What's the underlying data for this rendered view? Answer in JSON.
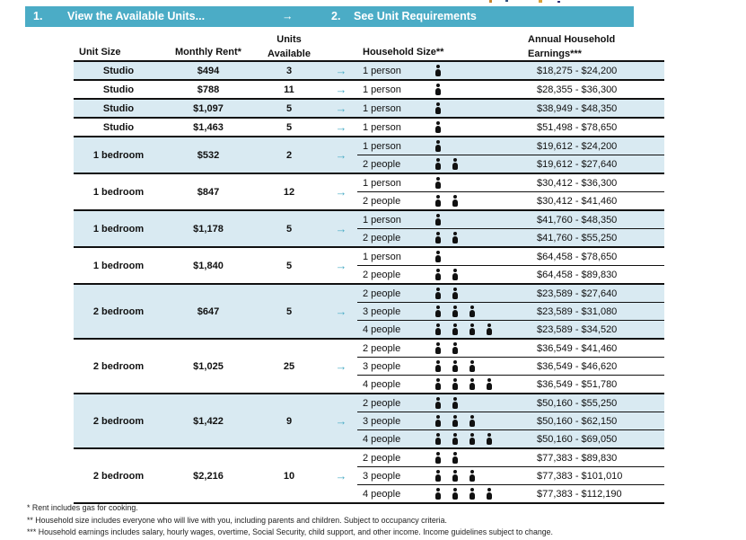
{
  "header_bar": {
    "step1_number": "1.",
    "step1_label": "View the Available Units...",
    "arrow": "→",
    "step2_number": "2.",
    "step2_label": "See Unit Requirements"
  },
  "columns": {
    "unit_size": "Unit Size",
    "monthly_rent": "Monthly Rent*",
    "units_available_line1": "Units",
    "units_available_line2": "Available",
    "household_size": "Household Size**",
    "annual_earnings_line1": "Annual Household",
    "annual_earnings_line2": "Earnings***"
  },
  "table": {
    "row_arrow": "→",
    "groups": [
      {
        "unit_size": "Studio",
        "monthly_rent": "$494",
        "units_available": "3",
        "shaded": true,
        "rows": [
          {
            "household": "1 person",
            "persons": 1,
            "earnings": "$18,275 - $24,200"
          }
        ]
      },
      {
        "unit_size": "Studio",
        "monthly_rent": "$788",
        "units_available": "11",
        "shaded": false,
        "rows": [
          {
            "household": "1 person",
            "persons": 1,
            "earnings": "$28,355 - $36,300"
          }
        ]
      },
      {
        "unit_size": "Studio",
        "monthly_rent": "$1,097",
        "units_available": "5",
        "shaded": true,
        "rows": [
          {
            "household": "1 person",
            "persons": 1,
            "earnings": "$38,949 - $48,350"
          }
        ]
      },
      {
        "unit_size": "Studio",
        "monthly_rent": "$1,463",
        "units_available": "5",
        "shaded": false,
        "rows": [
          {
            "household": "1 person",
            "persons": 1,
            "earnings": "$51,498 - $78,650"
          }
        ]
      },
      {
        "unit_size": "1 bedroom",
        "monthly_rent": "$532",
        "units_available": "2",
        "shaded": true,
        "rows": [
          {
            "household": "1 person",
            "persons": 1,
            "earnings": "$19,612 - $24,200"
          },
          {
            "household": "2 people",
            "persons": 2,
            "earnings": "$19,612 - $27,640"
          }
        ]
      },
      {
        "unit_size": "1 bedroom",
        "monthly_rent": "$847",
        "units_available": "12",
        "shaded": false,
        "rows": [
          {
            "household": "1 person",
            "persons": 1,
            "earnings": "$30,412 - $36,300"
          },
          {
            "household": "2 people",
            "persons": 2,
            "earnings": "$30,412 - $41,460"
          }
        ]
      },
      {
        "unit_size": "1 bedroom",
        "monthly_rent": "$1,178",
        "units_available": "5",
        "shaded": true,
        "rows": [
          {
            "household": "1 person",
            "persons": 1,
            "earnings": "$41,760 - $48,350"
          },
          {
            "household": "2 people",
            "persons": 2,
            "earnings": "$41,760 - $55,250"
          }
        ]
      },
      {
        "unit_size": "1 bedroom",
        "monthly_rent": "$1,840",
        "units_available": "5",
        "shaded": false,
        "rows": [
          {
            "household": "1 person",
            "persons": 1,
            "earnings": "$64,458 - $78,650"
          },
          {
            "household": "2 people",
            "persons": 2,
            "earnings": "$64,458 - $89,830"
          }
        ]
      },
      {
        "unit_size": "2 bedroom",
        "monthly_rent": "$647",
        "units_available": "5",
        "shaded": true,
        "rows": [
          {
            "household": "2 people",
            "persons": 2,
            "earnings": "$23,589 - $27,640"
          },
          {
            "household": "3 people",
            "persons": 3,
            "earnings": "$23,589 - $31,080"
          },
          {
            "household": "4 people",
            "persons": 4,
            "earnings": "$23,589 - $34,520"
          }
        ]
      },
      {
        "unit_size": "2 bedroom",
        "monthly_rent": "$1,025",
        "units_available": "25",
        "shaded": false,
        "rows": [
          {
            "household": "2 people",
            "persons": 2,
            "earnings": "$36,549 - $41,460"
          },
          {
            "household": "3 people",
            "persons": 3,
            "earnings": "$36,549 - $46,620"
          },
          {
            "household": "4 people",
            "persons": 4,
            "earnings": "$36,549 - $51,780"
          }
        ]
      },
      {
        "unit_size": "2 bedroom",
        "monthly_rent": "$1,422",
        "units_available": "9",
        "shaded": true,
        "rows": [
          {
            "household": "2 people",
            "persons": 2,
            "earnings": "$50,160 - $55,250"
          },
          {
            "household": "3 people",
            "persons": 3,
            "earnings": "$50,160 - $62,150"
          },
          {
            "household": "4 people",
            "persons": 4,
            "earnings": "$50,160 - $69,050"
          }
        ]
      },
      {
        "unit_size": "2 bedroom",
        "monthly_rent": "$2,216",
        "units_available": "10",
        "shaded": false,
        "rows": [
          {
            "household": "2 people",
            "persons": 2,
            "earnings": "$77,383 - $89,830"
          },
          {
            "household": "3 people",
            "persons": 3,
            "earnings": "$77,383 - $101,010"
          },
          {
            "household": "4 people",
            "persons": 4,
            "earnings": "$77,383 - $112,190"
          }
        ]
      }
    ]
  },
  "footnotes": {
    "note1": "* Rent includes gas for cooking.",
    "note2": "** Household size includes everyone who will live with you, including parents and children. Subject to occupancy criteria.",
    "note3": "*** Household earnings includes salary, hourly wages, overtime, Social Security, child support, and other income. Income guidelines subject to change."
  },
  "colors": {
    "header_bar": "#4BACC6",
    "row_shade": "#D9EAF2",
    "arrow": "#4BACC6"
  }
}
